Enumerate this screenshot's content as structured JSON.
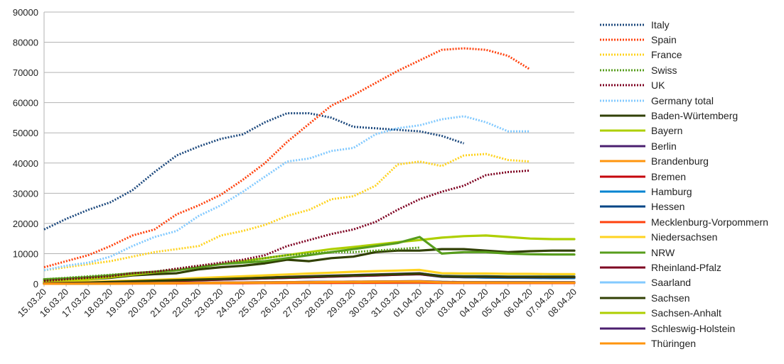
{
  "chart_data": {
    "type": "line",
    "title": "",
    "xlabel": "",
    "ylabel": "",
    "ylim": [
      0,
      90000
    ],
    "yticks": [
      0,
      10000,
      20000,
      30000,
      40000,
      50000,
      60000,
      70000,
      80000,
      90000
    ],
    "ytick_labels": [
      "0",
      "10000",
      "20000",
      "30000",
      "40000",
      "50000",
      "60000",
      "70000",
      "80000",
      "90000"
    ],
    "grid": "horizontal",
    "legend_position": "right",
    "categories": [
      "15.03.20",
      "16.03.20",
      "17.03.20",
      "18.03.20",
      "19.03.20",
      "20.03.20",
      "21.03.20",
      "22.03.20",
      "23.03.20",
      "24.03.20",
      "25.03.20",
      "26.03.20",
      "27.03.20",
      "28.03.20",
      "29.03.20",
      "30.03.20",
      "31.03.20",
      "01.04.20",
      "02.04.20",
      "03.04.20",
      "04.04.20",
      "05.04.20",
      "06.04.20",
      "07.04.20",
      "08.04.20"
    ],
    "series": [
      {
        "name": "Italy",
        "color": "#1e4a7e",
        "style": "dotted",
        "values": [
          18000,
          21500,
          24500,
          27000,
          31000,
          37000,
          42500,
          45500,
          48000,
          49500,
          53500,
          56500,
          56500,
          55000,
          52000,
          51500,
          51000,
          50500,
          49000,
          46500,
          null,
          null,
          null,
          null,
          null
        ],
        "offset": 0
      },
      {
        "name": "Spain",
        "color": "#ff420e",
        "style": "dotted",
        "values": [
          5500,
          7500,
          9500,
          12500,
          16000,
          18000,
          23000,
          26000,
          29500,
          34500,
          40000,
          47000,
          53000,
          59000,
          62500,
          66500,
          70500,
          74000,
          77500,
          78000,
          77500,
          75500,
          71000,
          null,
          null
        ],
        "offset": 0
      },
      {
        "name": "France",
        "color": "#ffd320",
        "style": "dotted",
        "values": [
          4500,
          5500,
          6500,
          7500,
          9000,
          10500,
          11500,
          12500,
          16000,
          17500,
          19500,
          22500,
          24500,
          28000,
          29000,
          32500,
          39500,
          40500,
          39000,
          42500,
          43000,
          41000,
          40500,
          null,
          null
        ],
        "offset": 0
      },
      {
        "name": "Swiss",
        "color": "#579d1c",
        "style": "dotted",
        "values": [
          1500,
          2000,
          2500,
          3000,
          3500,
          4000,
          5000,
          6000,
          6500,
          7500,
          8500,
          9500,
          10000,
          10500,
          10500,
          11000,
          11500,
          12000,
          null,
          null,
          null,
          null,
          null,
          null,
          null
        ],
        "offset": 0
      },
      {
        "name": "UK",
        "color": "#7e0021",
        "style": "dotted",
        "values": [
          1000,
          1500,
          2000,
          2500,
          3500,
          4000,
          5000,
          6000,
          7000,
          8000,
          9500,
          12500,
          14500,
          16500,
          18000,
          20500,
          24500,
          28000,
          30500,
          32500,
          36000,
          37000,
          37500,
          null,
          null
        ],
        "offset": 0
      },
      {
        "name": "Germany total",
        "color": "#83caff",
        "style": "dotted",
        "values": [
          4500,
          6000,
          7000,
          9000,
          12500,
          15500,
          17500,
          22500,
          26000,
          30500,
          35500,
          40500,
          41500,
          44000,
          45000,
          49500,
          51500,
          52500,
          54500,
          55500,
          53500,
          50500,
          50500,
          null,
          null
        ],
        "offset": 0
      },
      {
        "name": "Baden-Würtemberg",
        "color": "#314004",
        "style": "solid",
        "values": [
          800,
          1200,
          1500,
          2000,
          2800,
          3200,
          3500,
          4800,
          5500,
          6000,
          6800,
          8000,
          7500,
          8500,
          9000,
          10500,
          11000,
          11000,
          11500,
          11500,
          11000,
          10500,
          10800,
          11000,
          11000
        ],
        "offset": 0
      },
      {
        "name": "Bayern",
        "color": "#aecf00",
        "style": "solid",
        "values": [
          600,
          1000,
          1500,
          2200,
          3000,
          3800,
          4500,
          5500,
          6500,
          7500,
          8500,
          9500,
          10500,
          11500,
          12200,
          13000,
          13800,
          14500,
          15300,
          15800,
          16000,
          15500,
          15000,
          14800,
          14800
        ],
        "offset": 0
      },
      {
        "name": "Berlin",
        "color": "#4b1f6f",
        "style": "solid",
        "values": [
          200,
          300,
          500,
          700,
          900,
          1100,
          1300,
          1500,
          1700,
          1900,
          2100,
          2300,
          2500,
          2700,
          2900,
          3100,
          3300,
          3500,
          2500,
          2200,
          2100,
          2100,
          2000,
          2000,
          2000
        ],
        "offset": 0
      },
      {
        "name": "Brandenburg",
        "color": "#ff950e",
        "style": "solid",
        "values": [
          50,
          80,
          100,
          150,
          200,
          250,
          300,
          350,
          400,
          450,
          500,
          550,
          600,
          650,
          700,
          750,
          800,
          850,
          500,
          450,
          450,
          400,
          400,
          400,
          400
        ],
        "offset": 0
      },
      {
        "name": "Bremen",
        "color": "#c5000b",
        "style": "solid",
        "values": [
          30,
          50,
          80,
          100,
          150,
          200,
          250,
          300,
          350,
          400,
          450,
          500,
          550,
          600,
          650,
          700,
          750,
          800,
          400,
          350,
          350,
          300,
          300,
          300,
          300
        ],
        "offset": 0
      },
      {
        "name": "Hamburg",
        "color": "#0084d1",
        "style": "solid",
        "values": [
          100,
          200,
          300,
          400,
          600,
          800,
          1000,
          1200,
          1400,
          1600,
          1800,
          2000,
          2200,
          2400,
          2600,
          2800,
          3000,
          3200,
          2300,
          2200,
          2100,
          2000,
          2000,
          1900,
          1900
        ],
        "offset": 0
      },
      {
        "name": "Hessen",
        "color": "#004586",
        "style": "solid",
        "values": [
          150,
          250,
          400,
          600,
          800,
          1000,
          1200,
          1400,
          1600,
          1800,
          2000,
          2200,
          2400,
          2600,
          2800,
          3000,
          3200,
          3400,
          2600,
          2500,
          2500,
          2400,
          2400,
          2400,
          2400
        ],
        "offset": 0
      },
      {
        "name": "Mecklenburg-Vorpommern",
        "color": "#ff420e",
        "style": "solid",
        "values": [
          30,
          50,
          60,
          80,
          100,
          120,
          150,
          180,
          200,
          220,
          250,
          280,
          300,
          320,
          350,
          380,
          400,
          420,
          300,
          280,
          280,
          260,
          260,
          260,
          260
        ],
        "offset": 0
      },
      {
        "name": "Niedersachsen",
        "color": "#ffd320",
        "style": "solid",
        "values": [
          300,
          500,
          700,
          900,
          1100,
          1300,
          1600,
          1900,
          2200,
          2500,
          2800,
          3100,
          3400,
          3700,
          4000,
          4200,
          4400,
          4600,
          3500,
          3400,
          3400,
          3300,
          3300,
          3200,
          3200
        ],
        "offset": 0
      },
      {
        "name": "NRW",
        "color": "#579d1c",
        "style": "solid",
        "values": [
          1500,
          1800,
          2200,
          2800,
          3500,
          4000,
          4500,
          5500,
          6500,
          7000,
          7500,
          8500,
          9500,
          10500,
          11500,
          12500,
          13500,
          15500,
          10000,
          10500,
          10500,
          10000,
          9800,
          9700,
          9700
        ],
        "offset": 0
      },
      {
        "name": "Rheinland-Pfalz",
        "color": "#7e0021",
        "style": "solid",
        "values": [
          100,
          200,
          300,
          400,
          600,
          800,
          1000,
          1200,
          1400,
          1600,
          1800,
          2000,
          2200,
          2400,
          2600,
          2800,
          3000,
          3200,
          2400,
          2300,
          2300,
          2200,
          2200,
          2200,
          2200
        ],
        "offset": 0
      },
      {
        "name": "Saarland",
        "color": "#83caff",
        "style": "solid",
        "values": [
          50,
          80,
          100,
          150,
          200,
          250,
          300,
          350,
          400,
          450,
          500,
          550,
          600,
          650,
          700,
          750,
          800,
          850,
          600,
          550,
          550,
          500,
          500,
          500,
          500
        ],
        "offset": 0
      },
      {
        "name": "Sachsen",
        "color": "#314004",
        "style": "solid",
        "values": [
          200,
          300,
          400,
          600,
          800,
          1000,
          1200,
          1400,
          1600,
          1800,
          2000,
          2200,
          2400,
          2600,
          2800,
          3000,
          3200,
          3400,
          2500,
          2400,
          2400,
          2300,
          2300,
          2300,
          2300
        ],
        "offset": 0
      },
      {
        "name": "Sachsen-Anhalt",
        "color": "#aecf00",
        "style": "solid",
        "values": [
          30,
          50,
          80,
          100,
          150,
          200,
          250,
          300,
          350,
          400,
          450,
          500,
          550,
          600,
          650,
          700,
          750,
          800,
          600,
          550,
          550,
          500,
          500,
          500,
          500
        ],
        "offset": 0
      },
      {
        "name": "Schleswig-Holstein",
        "color": "#4b1f6f",
        "style": "solid",
        "values": [
          50,
          80,
          120,
          160,
          200,
          250,
          300,
          350,
          400,
          450,
          500,
          550,
          600,
          650,
          700,
          750,
          800,
          850,
          600,
          550,
          550,
          500,
          500,
          500,
          500
        ],
        "offset": 0
      },
      {
        "name": "Thüringen",
        "color": "#ff950e",
        "style": "solid",
        "values": [
          30,
          50,
          80,
          100,
          150,
          200,
          250,
          300,
          350,
          400,
          450,
          500,
          550,
          600,
          650,
          700,
          750,
          800,
          500,
          450,
          450,
          400,
          400,
          400,
          400
        ],
        "offset": 0
      }
    ]
  }
}
